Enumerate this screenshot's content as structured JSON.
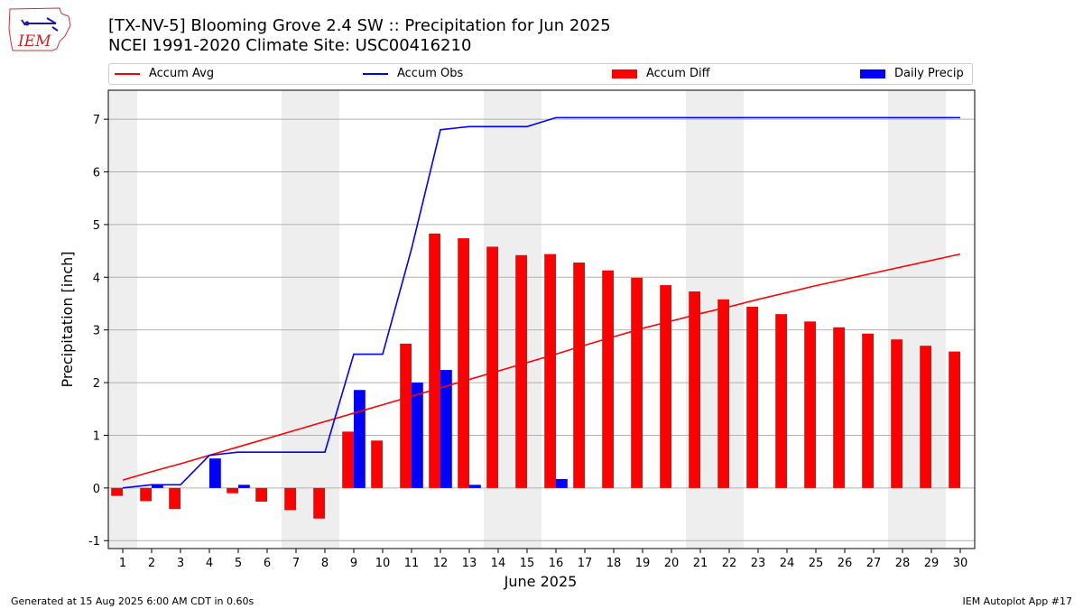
{
  "header": {
    "title_line1": "[TX-NV-5] Blooming Grove 2.4 SW :: Precipitation for Jun 2025",
    "title_line2": "NCEI 1991-2020 Climate Site: USC00416210",
    "logo_text": "IEM"
  },
  "footer": {
    "generated": "Generated at 15 Aug 2025 6:00 AM CDT in 0.60s",
    "app": "IEM Autoplot App #17"
  },
  "colors": {
    "avg": "#ff0000",
    "obs": "#0000ff",
    "diff": "#ff0000",
    "daily": "#0000ff",
    "weekend": "#eeeeee",
    "grid": "#b0b0b0"
  },
  "chart_data": {
    "type": "bar",
    "xlabel": "June 2025",
    "ylabel": "Precipitation [inch]",
    "xlim": [
      0.5,
      30.5
    ],
    "ylim": [
      -1.15,
      7.55
    ],
    "yticks": [
      -1,
      0,
      1,
      2,
      3,
      4,
      5,
      6,
      7
    ],
    "grid": true,
    "legend_placement": "top",
    "categories": [
      1,
      2,
      3,
      4,
      5,
      6,
      7,
      8,
      9,
      10,
      11,
      12,
      13,
      14,
      15,
      16,
      17,
      18,
      19,
      20,
      21,
      22,
      23,
      24,
      25,
      26,
      27,
      28,
      29,
      30
    ],
    "weekend_days": [
      1,
      7,
      8,
      14,
      15,
      21,
      22,
      28,
      29
    ],
    "series": [
      {
        "name": "Accum Avg",
        "kind": "line",
        "values": [
          0.15,
          0.31,
          0.46,
          0.62,
          0.78,
          0.94,
          1.1,
          1.26,
          1.42,
          1.58,
          1.74,
          1.9,
          2.06,
          2.22,
          2.38,
          2.54,
          2.71,
          2.87,
          3.03,
          3.17,
          3.31,
          3.44,
          3.58,
          3.71,
          3.84,
          3.96,
          4.08,
          4.2,
          4.32,
          4.44
        ]
      },
      {
        "name": "Accum Obs",
        "kind": "line",
        "values": [
          0.0,
          0.06,
          0.06,
          0.62,
          0.68,
          0.68,
          0.68,
          0.68,
          2.54,
          2.54,
          4.54,
          6.8,
          6.86,
          6.86,
          6.86,
          7.03,
          7.03,
          7.03,
          7.03,
          7.03,
          7.03,
          7.03,
          7.03,
          7.03,
          7.03,
          7.03,
          7.03,
          7.03,
          7.03,
          7.03
        ]
      },
      {
        "name": "Accum Diff",
        "kind": "bar",
        "values": [
          -0.15,
          -0.25,
          -0.4,
          0.0,
          -0.1,
          -0.26,
          -0.42,
          -0.58,
          1.07,
          0.9,
          2.74,
          4.83,
          4.74,
          4.58,
          4.42,
          4.44,
          4.28,
          4.13,
          3.99,
          3.85,
          3.73,
          3.58,
          3.44,
          3.3,
          3.16,
          3.05,
          2.93,
          2.82,
          2.7,
          2.59
        ]
      },
      {
        "name": "Daily Precip",
        "kind": "bar",
        "values": [
          0.0,
          0.06,
          0.0,
          0.56,
          0.06,
          0.0,
          0.0,
          0.0,
          1.86,
          0.0,
          2.0,
          2.24,
          0.06,
          0.0,
          0.0,
          0.17,
          0.0,
          0.0,
          0.0,
          0.0,
          0.0,
          0.0,
          0.0,
          0.0,
          0.0,
          0.0,
          0.0,
          0.0,
          0.0,
          0.0
        ]
      }
    ]
  }
}
